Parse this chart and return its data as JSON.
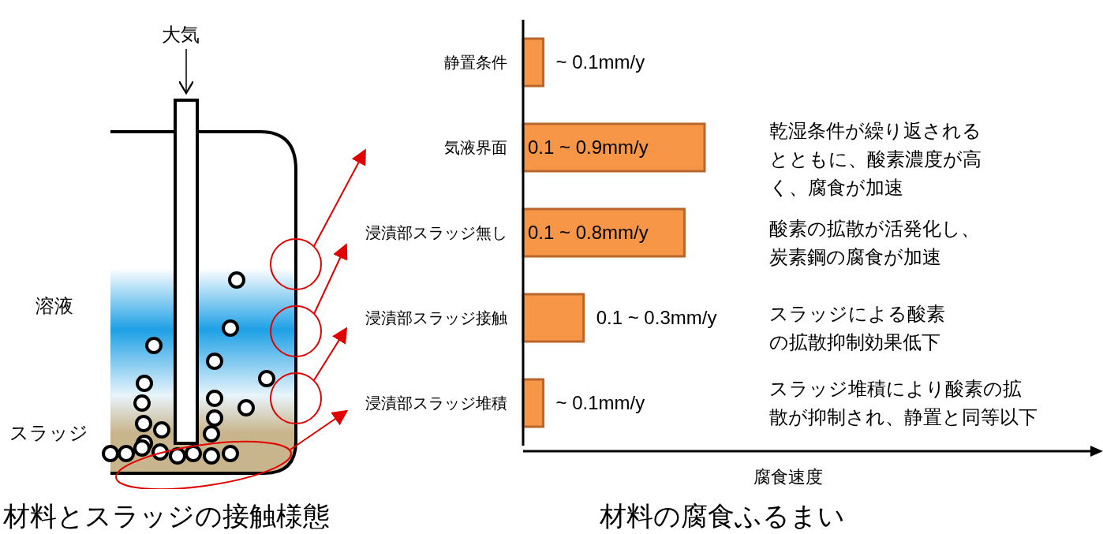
{
  "chart_data": {
    "type": "bar",
    "orientation": "horizontal",
    "title": "材料の腐食ふるまい",
    "xlabel": "腐食速度",
    "categories": [
      "静置条件",
      "気液界面",
      "浸漬部スラッジ無し",
      "浸漬部スラッジ接触",
      "浸漬部スラッジ堆積"
    ],
    "values": [
      0.1,
      0.9,
      0.8,
      0.3,
      0.1
    ],
    "color": "#f79646",
    "value_labels": [
      "~ 0.1mm/y",
      "0.1 ~ 0.9mm/y",
      "0.1 ~ 0.8mm/y",
      "0.1 ~ 0.3mm/y",
      "~ 0.1mm/y"
    ],
    "annotations": [
      "大気",
      "溶液",
      "スラッジ",
      "材料とスラッジの接触様態",
      "乾湿条件が繰り返されるとともに、酸素濃度が高く、腐食が加速",
      "酸素の拡散が活発化し、炭素鋼の腐食が加速",
      "スラッジによる酸素の拡散抑制効果低下",
      "スラッジ堆積により酸素の拡散が抑制され、静置と同等以下"
    ]
  }
}
